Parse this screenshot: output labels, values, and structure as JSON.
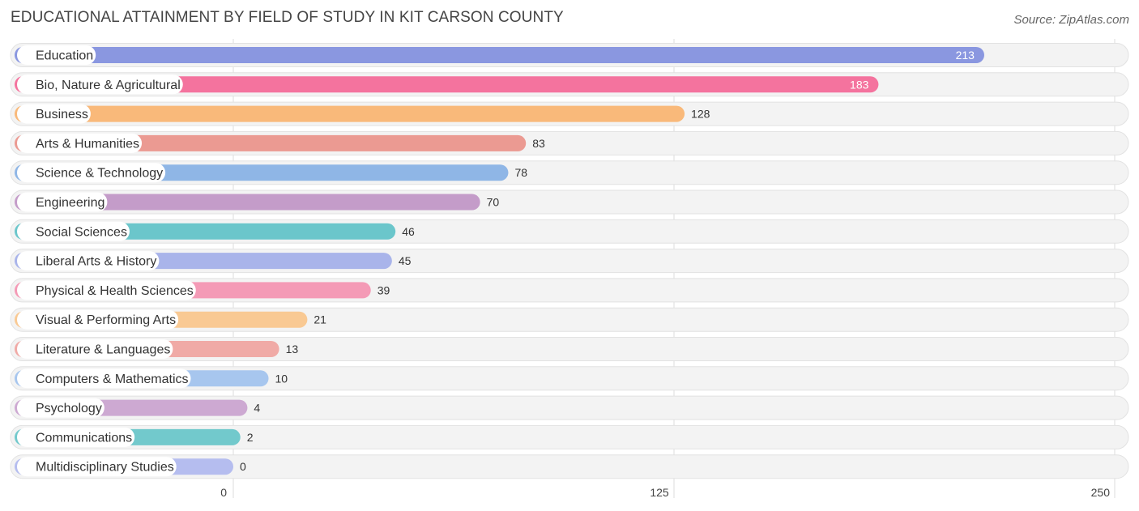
{
  "title": "EDUCATIONAL ATTAINMENT BY FIELD OF STUDY IN KIT CARSON COUNTY",
  "source": "Source: ZipAtlas.com",
  "chart_data": {
    "type": "bar",
    "orientation": "horizontal",
    "title": "EDUCATIONAL ATTAINMENT BY FIELD OF STUDY IN KIT CARSON COUNTY",
    "categories": [
      "Education",
      "Bio, Nature & Agricultural",
      "Business",
      "Arts & Humanities",
      "Science & Technology",
      "Engineering",
      "Social Sciences",
      "Liberal Arts & History",
      "Physical & Health Sciences",
      "Visual & Performing Arts",
      "Literature & Languages",
      "Computers & Mathematics",
      "Psychology",
      "Communications",
      "Multidisciplinary Studies"
    ],
    "values": [
      213,
      183,
      128,
      83,
      78,
      70,
      46,
      45,
      39,
      21,
      13,
      10,
      4,
      2,
      0
    ],
    "colors": [
      "#8a97e0",
      "#f4739e",
      "#f9b97a",
      "#eb9a92",
      "#8fb6e6",
      "#c49cc9",
      "#6bc6cb",
      "#a9b4ea",
      "#f49ab6",
      "#f9c993",
      "#f0aaa6",
      "#a7c6ee",
      "#cda9d2",
      "#72c9cc",
      "#b5bdef"
    ],
    "xlim": [
      0,
      250
    ],
    "xticks": [
      "0",
      "125",
      "250"
    ],
    "grid": true
  }
}
